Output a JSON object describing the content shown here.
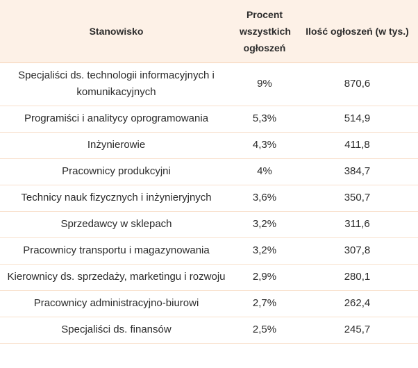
{
  "table": {
    "header": [
      "Stanowisko",
      "Procent wszystkich ogłoszeń",
      "Ilość ogłoszeń (w tys.)"
    ],
    "rows": [
      [
        "Specjaliści ds. technologii informacyjnych i komunikacyjnych",
        "9%",
        "870,6"
      ],
      [
        "Programiści i analitycy oprogramowania",
        "5,3%",
        "514,9"
      ],
      [
        "Inżynierowie",
        "4,3%",
        "411,8"
      ],
      [
        "Pracownicy produkcyjni",
        "4%",
        "384,7"
      ],
      [
        "Technicy nauk fizycznych i inżynieryjnych",
        "3,6%",
        "350,7"
      ],
      [
        "Sprzedawcy w sklepach",
        "3,2%",
        "311,6"
      ],
      [
        "Pracownicy transportu i magazynowania",
        "3,2%",
        "307,8"
      ],
      [
        "Kierownicy ds. sprzedaży, marketingu i rozwoju",
        "2,9%",
        "280,1"
      ],
      [
        "Pracownicy administracyjno-biurowi",
        "2,7%",
        "262,4"
      ],
      [
        "Specjaliści ds. finansów",
        "2,5%",
        "245,7"
      ]
    ]
  }
}
